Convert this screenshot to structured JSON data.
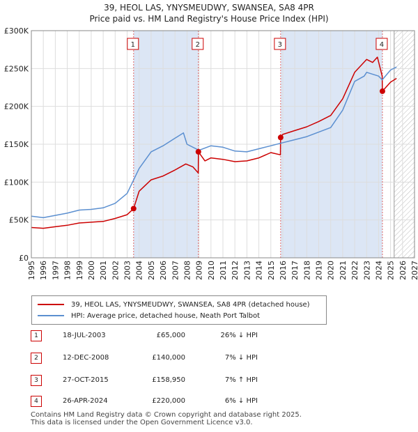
{
  "title": "39, HEOL LAS, YNYSMEUDWY, SWANSEA, SA8 4PR",
  "subtitle": "Price paid vs. HM Land Registry's House Price Index (HPI)",
  "colors": {
    "property": "#cc0000",
    "hpi": "#5b8fd0",
    "band": "#dce6f5",
    "vline": "#e06666",
    "grid": "#dddddd"
  },
  "chart_data": {
    "type": "line",
    "title": "Price paid vs. HM Land Registry's House Price Index (HPI)",
    "xlabel": "",
    "ylabel": "",
    "xlim": [
      1995,
      2027
    ],
    "ylim": [
      0,
      300000
    ],
    "grid": true,
    "x_ticks": [
      "1995",
      "1996",
      "1997",
      "1998",
      "1999",
      "2000",
      "2001",
      "2002",
      "2003",
      "2004",
      "2005",
      "2006",
      "2007",
      "2008",
      "2009",
      "2010",
      "2011",
      "2012",
      "2013",
      "2014",
      "2015",
      "2016",
      "2017",
      "2018",
      "2019",
      "2020",
      "2021",
      "2022",
      "2023",
      "2024",
      "2025",
      "2026",
      "2027"
    ],
    "y_ticks": [
      {
        "value": 0,
        "label": "£0"
      },
      {
        "value": 50000,
        "label": "£50K"
      },
      {
        "value": 100000,
        "label": "£100K"
      },
      {
        "value": 150000,
        "label": "£150K"
      },
      {
        "value": 200000,
        "label": "£200K"
      },
      {
        "value": 250000,
        "label": "£250K"
      },
      {
        "value": 300000,
        "label": "£300K"
      }
    ],
    "forecast_start": 2025.3,
    "series": [
      {
        "name": "39, HEOL LAS, YNYSMEUDWY, SWANSEA, SA8 4PR (detached house)",
        "color": "#cc0000",
        "x": [
          1995,
          1996,
          1997,
          1998,
          1999,
          2000,
          2001,
          2002,
          2003.0,
          2003.54,
          2004,
          2005,
          2006,
          2007,
          2007.9,
          2008.5,
          2008.94,
          2008.95,
          2009.5,
          2010,
          2011,
          2012,
          2013,
          2014,
          2015,
          2015.8,
          2015.82,
          2016,
          2017,
          2018,
          2019,
          2020,
          2021,
          2022,
          2023,
          2023.5,
          2023.9,
          2024.3,
          2024.32,
          2024.6,
          2025,
          2025.5
        ],
        "y": [
          40000,
          39000,
          41000,
          43000,
          46000,
          47000,
          48000,
          52000,
          57000,
          65000,
          88000,
          103000,
          108000,
          116000,
          124000,
          120000,
          112000,
          140000,
          128000,
          132000,
          130000,
          127000,
          128000,
          132000,
          139000,
          136000,
          158950,
          163000,
          168000,
          173000,
          180000,
          188000,
          210000,
          245000,
          262000,
          258000,
          265000,
          240000,
          220000,
          225000,
          232000,
          237000
        ]
      },
      {
        "name": "HPI: Average price, detached house, Neath Port Talbot",
        "color": "#5b8fd0",
        "x": [
          1995,
          1996,
          1997,
          1998,
          1999,
          2000,
          2001,
          2002,
          2003,
          2004,
          2005,
          2006,
          2007,
          2007.7,
          2008,
          2009,
          2010,
          2011,
          2012,
          2013,
          2014,
          2015,
          2016,
          2017,
          2018,
          2019,
          2020,
          2021,
          2022,
          2022.8,
          2023,
          2024,
          2024.3,
          2025,
          2025.5
        ],
        "y": [
          55000,
          53000,
          56000,
          59000,
          63000,
          64000,
          66000,
          72000,
          85000,
          118000,
          140000,
          148000,
          158000,
          165000,
          150000,
          142000,
          148000,
          146000,
          141000,
          140000,
          144000,
          148000,
          152000,
          156000,
          160000,
          166000,
          172000,
          195000,
          233000,
          240000,
          245000,
          240000,
          235000,
          248000,
          252000
        ]
      }
    ],
    "sales": [
      {
        "num": "1",
        "x": 2003.54,
        "price": 65000
      },
      {
        "num": "2",
        "x": 2008.95,
        "price": 140000
      },
      {
        "num": "3",
        "x": 2015.82,
        "price": 158950
      },
      {
        "num": "4",
        "x": 2024.32,
        "price": 220000
      }
    ]
  },
  "legend": {
    "property": "39, HEOL LAS, YNYSMEUDWY, SWANSEA, SA8 4PR (detached house)",
    "hpi": "HPI: Average price, detached house, Neath Port Talbot"
  },
  "sales_table": [
    {
      "num": "1",
      "date": "18-JUL-2003",
      "price": "£65,000",
      "pct": "26% ↓ HPI"
    },
    {
      "num": "2",
      "date": "12-DEC-2008",
      "price": "£140,000",
      "pct": "7% ↓ HPI"
    },
    {
      "num": "3",
      "date": "27-OCT-2015",
      "price": "£158,950",
      "pct": "7% ↑ HPI"
    },
    {
      "num": "4",
      "date": "26-APR-2024",
      "price": "£220,000",
      "pct": "6% ↓ HPI"
    }
  ],
  "footer": {
    "line1": "Contains HM Land Registry data © Crown copyright and database right 2025.",
    "line2": "This data is licensed under the Open Government Licence v3.0."
  }
}
